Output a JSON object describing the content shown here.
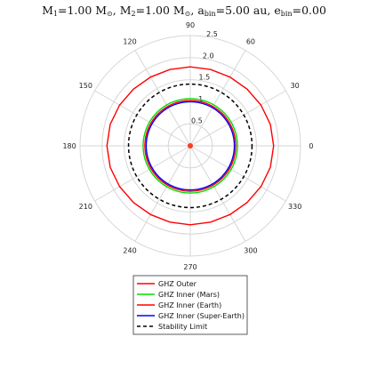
{
  "chart_data": {
    "type": "polar",
    "title": "M₁=1.00 M☉, M₂=1.00 M☉, a_bin=5.00 au, e_bin=0.00",
    "title_parts": {
      "m1": "1.00",
      "m2": "1.00",
      "a_bin": "5.00",
      "e_bin": "0.00",
      "unit_mass": "M",
      "unit_dist": "au"
    },
    "r_max": 2.5,
    "r_ticks": [
      0.5,
      1,
      1.5,
      2,
      2.5
    ],
    "r_tick_labels": [
      "0.5",
      "1",
      "1.5",
      "2.0",
      "2.5"
    ],
    "theta_ticks": [
      0,
      30,
      60,
      90,
      120,
      150,
      180,
      210,
      240,
      270,
      300,
      330
    ],
    "theta_tick_labels": [
      "0",
      "30",
      "60",
      "90",
      "120",
      "150",
      "180",
      "210",
      "240",
      "270",
      "300",
      "330"
    ],
    "grid": true,
    "legend_position": "bottom",
    "center_point": {
      "r": 0,
      "color": "#ff3b1f"
    },
    "series": [
      {
        "name": "GHZ Outer",
        "color": "#ff0000",
        "style": "solid",
        "angles": [
          0,
          15,
          30,
          45,
          60,
          75,
          90,
          105,
          120,
          135,
          150,
          165,
          180,
          195,
          210,
          225,
          240,
          255,
          270,
          285,
          300,
          315,
          330,
          345
        ],
        "radii": [
          1.89,
          1.88,
          1.85,
          1.82,
          1.8,
          1.79,
          1.79,
          1.79,
          1.8,
          1.82,
          1.85,
          1.88,
          1.89,
          1.88,
          1.85,
          1.82,
          1.8,
          1.79,
          1.79,
          1.79,
          1.8,
          1.82,
          1.85,
          1.88
        ]
      },
      {
        "name": "GHZ Inner (Mars)",
        "color": "#00dd00",
        "style": "solid",
        "radius": 1.07
      },
      {
        "name": "GHZ Inner (Earth)",
        "color": "#ff0000",
        "style": "solid",
        "radius": 1.03
      },
      {
        "name": "GHZ Inner (Super-Earth)",
        "color": "#0000ff",
        "style": "solid",
        "radius": 1.0
      },
      {
        "name": "Stability Limit",
        "color": "#000000",
        "style": "dashed",
        "radius": 1.4
      }
    ]
  }
}
